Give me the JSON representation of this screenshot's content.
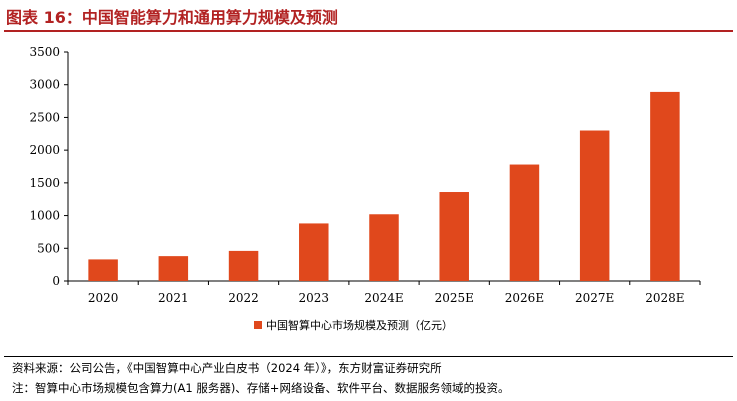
{
  "figure": {
    "title": "图表 16：中国智能算力和通用算力规模及预测"
  },
  "chart_data": {
    "type": "bar",
    "categories": [
      "2020",
      "2021",
      "2022",
      "2023",
      "2024E",
      "2025E",
      "2026E",
      "2027E",
      "2028E"
    ],
    "series": [
      {
        "name": "中国智算中心市场规模及预测（亿元）",
        "values": [
          330,
          380,
          460,
          880,
          1020,
          1360,
          1780,
          2300,
          2890
        ],
        "color": "#e0481c"
      }
    ],
    "ylim": [
      0,
      3500
    ],
    "yticks": [
      0,
      500,
      1000,
      1500,
      2000,
      2500,
      3000,
      3500
    ],
    "grid": false,
    "legend_position": "bottom-center"
  },
  "notes": {
    "source": "资料来源：公司公告，《中国智算中心产业白皮书（2024 年）》，东方财富证券研究所",
    "footnote": "注：智算中心市场规模包含算力(A1 服务器)、存储+网络设备、软件平台、数据服务领域的投资。"
  }
}
